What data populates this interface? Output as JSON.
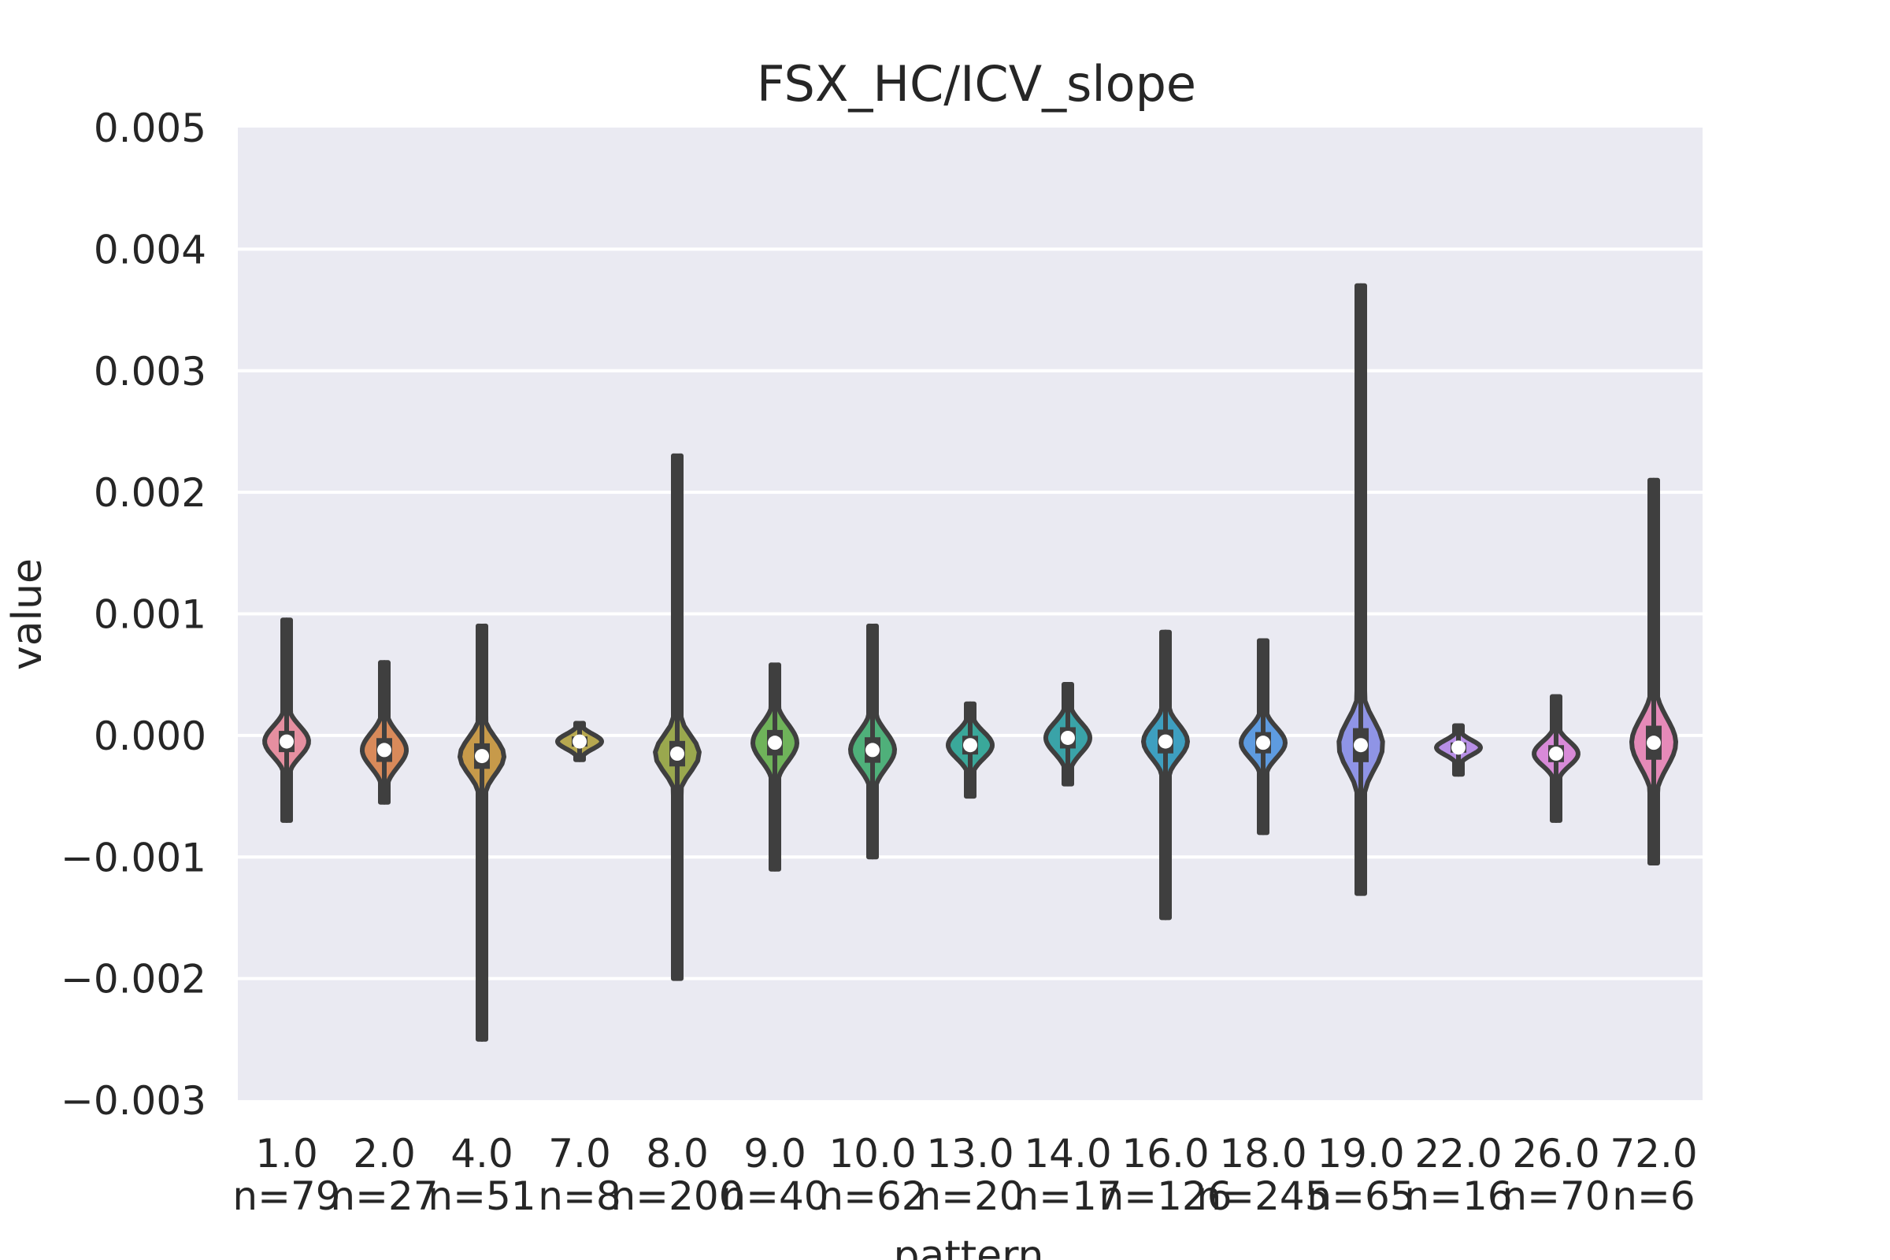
{
  "chart_data": {
    "type": "violin",
    "title": "FSX_HC/ICV_slope",
    "xlabel": "pattern",
    "ylabel": "value",
    "ylim": [
      -0.003,
      0.005
    ],
    "yticks": [
      "−0.003",
      "−0.002",
      "−0.001",
      "0.000",
      "0.001",
      "0.002",
      "0.003",
      "0.004",
      "0.005"
    ],
    "ytick_values": [
      -0.003,
      -0.002,
      -0.001,
      0.0,
      0.001,
      0.002,
      0.003,
      0.004,
      0.005
    ],
    "grid": true,
    "categories": [
      {
        "label": "1.0",
        "n_label": "n=79",
        "min": -0.0007,
        "max": 0.00095,
        "median": -5e-05,
        "spread": 0.00025,
        "color": "#e58fa0"
      },
      {
        "label": "2.0",
        "n_label": "n=27",
        "min": -0.00055,
        "max": 0.0006,
        "median": -0.00012,
        "spread": 0.00028,
        "color": "#d98a5a"
      },
      {
        "label": "4.0",
        "n_label": "n=51",
        "min": -0.0025,
        "max": 0.0009,
        "median": -0.00017,
        "spread": 0.0003,
        "color": "#c79a4a"
      },
      {
        "label": "7.0",
        "n_label": "n=8",
        "min": -0.0002,
        "max": 0.0001,
        "median": -5e-05,
        "spread": 0.00012,
        "color": "#b7a850"
      },
      {
        "label": "8.0",
        "n_label": "n=200",
        "min": -0.002,
        "max": 0.0023,
        "median": -0.00015,
        "spread": 0.0003,
        "color": "#9aa84e"
      },
      {
        "label": "9.0",
        "n_label": "n=40",
        "min": -0.0011,
        "max": 0.00058,
        "median": -6e-05,
        "spread": 0.0003,
        "color": "#6fb35a"
      },
      {
        "label": "10.0",
        "n_label": "n=62",
        "min": -0.001,
        "max": 0.0009,
        "median": -0.00012,
        "spread": 0.0003,
        "color": "#4fb07a"
      },
      {
        "label": "13.0",
        "n_label": "n=20",
        "min": -0.0005,
        "max": 0.00026,
        "median": -8e-05,
        "spread": 0.00022,
        "color": "#3aa89a"
      },
      {
        "label": "14.0",
        "n_label": "n=17",
        "min": -0.0004,
        "max": 0.00042,
        "median": -2e-05,
        "spread": 0.00025,
        "color": "#3aa3a8"
      },
      {
        "label": "16.0",
        "n_label": "n=126",
        "min": -0.0015,
        "max": 0.00085,
        "median": -5e-05,
        "spread": 0.00028,
        "color": "#3e9fc0"
      },
      {
        "label": "18.0",
        "n_label": "n=245",
        "min": -0.0008,
        "max": 0.00078,
        "median": -6e-05,
        "spread": 0.00025,
        "color": "#5e9be0"
      },
      {
        "label": "19.0",
        "n_label": "n=65",
        "min": -0.0013,
        "max": 0.0037,
        "median": -8e-05,
        "spread": 0.0004,
        "color": "#8f94e6"
      },
      {
        "label": "22.0",
        "n_label": "n=16",
        "min": -0.00032,
        "max": 8e-05,
        "median": -0.0001,
        "spread": 0.00012,
        "color": "#b88fe6"
      },
      {
        "label": "26.0",
        "n_label": "n=70",
        "min": -0.0007,
        "max": 0.00032,
        "median": -0.00015,
        "spread": 0.0002,
        "color": "#d88ad8"
      },
      {
        "label": "72.0",
        "n_label": "n=6",
        "min": -0.00105,
        "max": 0.0021,
        "median": -6e-05,
        "spread": 0.0004,
        "color": "#e58ab8"
      }
    ]
  }
}
